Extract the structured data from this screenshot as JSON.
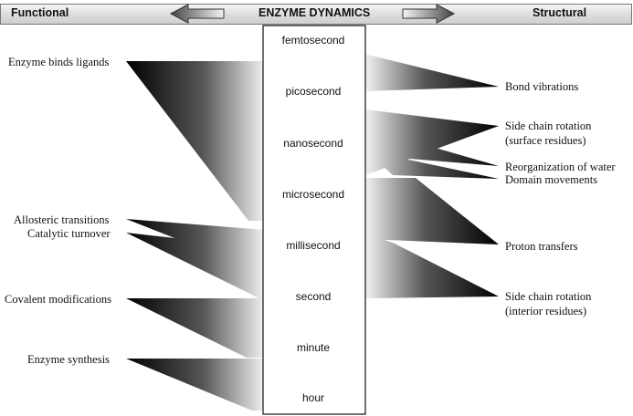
{
  "header": {
    "left_label": "Functional",
    "title": "ENZYME DYNAMICS",
    "right_label": "Structural"
  },
  "timescales": [
    "femtosecond",
    "picosecond",
    "nanosecond",
    "microsecond",
    "millisecond",
    "second",
    "minute",
    "hour"
  ],
  "functional_processes": [
    "Enzyme binds ligands",
    "Allosteric transitions",
    "Catalytic turnover",
    "Covalent modifications",
    "Enzyme synthesis"
  ],
  "structural_processes": [
    {
      "line1": "Bond vibrations",
      "line2": ""
    },
    {
      "line1": "Side chain rotation",
      "line2": "(surface residues)"
    },
    {
      "line1": "Reorganization of water",
      "line2": ""
    },
    {
      "line1": "Domain movements",
      "line2": ""
    },
    {
      "line1": "Proton transfers",
      "line2": ""
    },
    {
      "line1": "Side chain rotation",
      "line2": "(interior residues)"
    }
  ],
  "colors": {
    "wedge_dark": "#000000",
    "wedge_light": "#ffffff",
    "header_fill": "#d8d8d8"
  }
}
